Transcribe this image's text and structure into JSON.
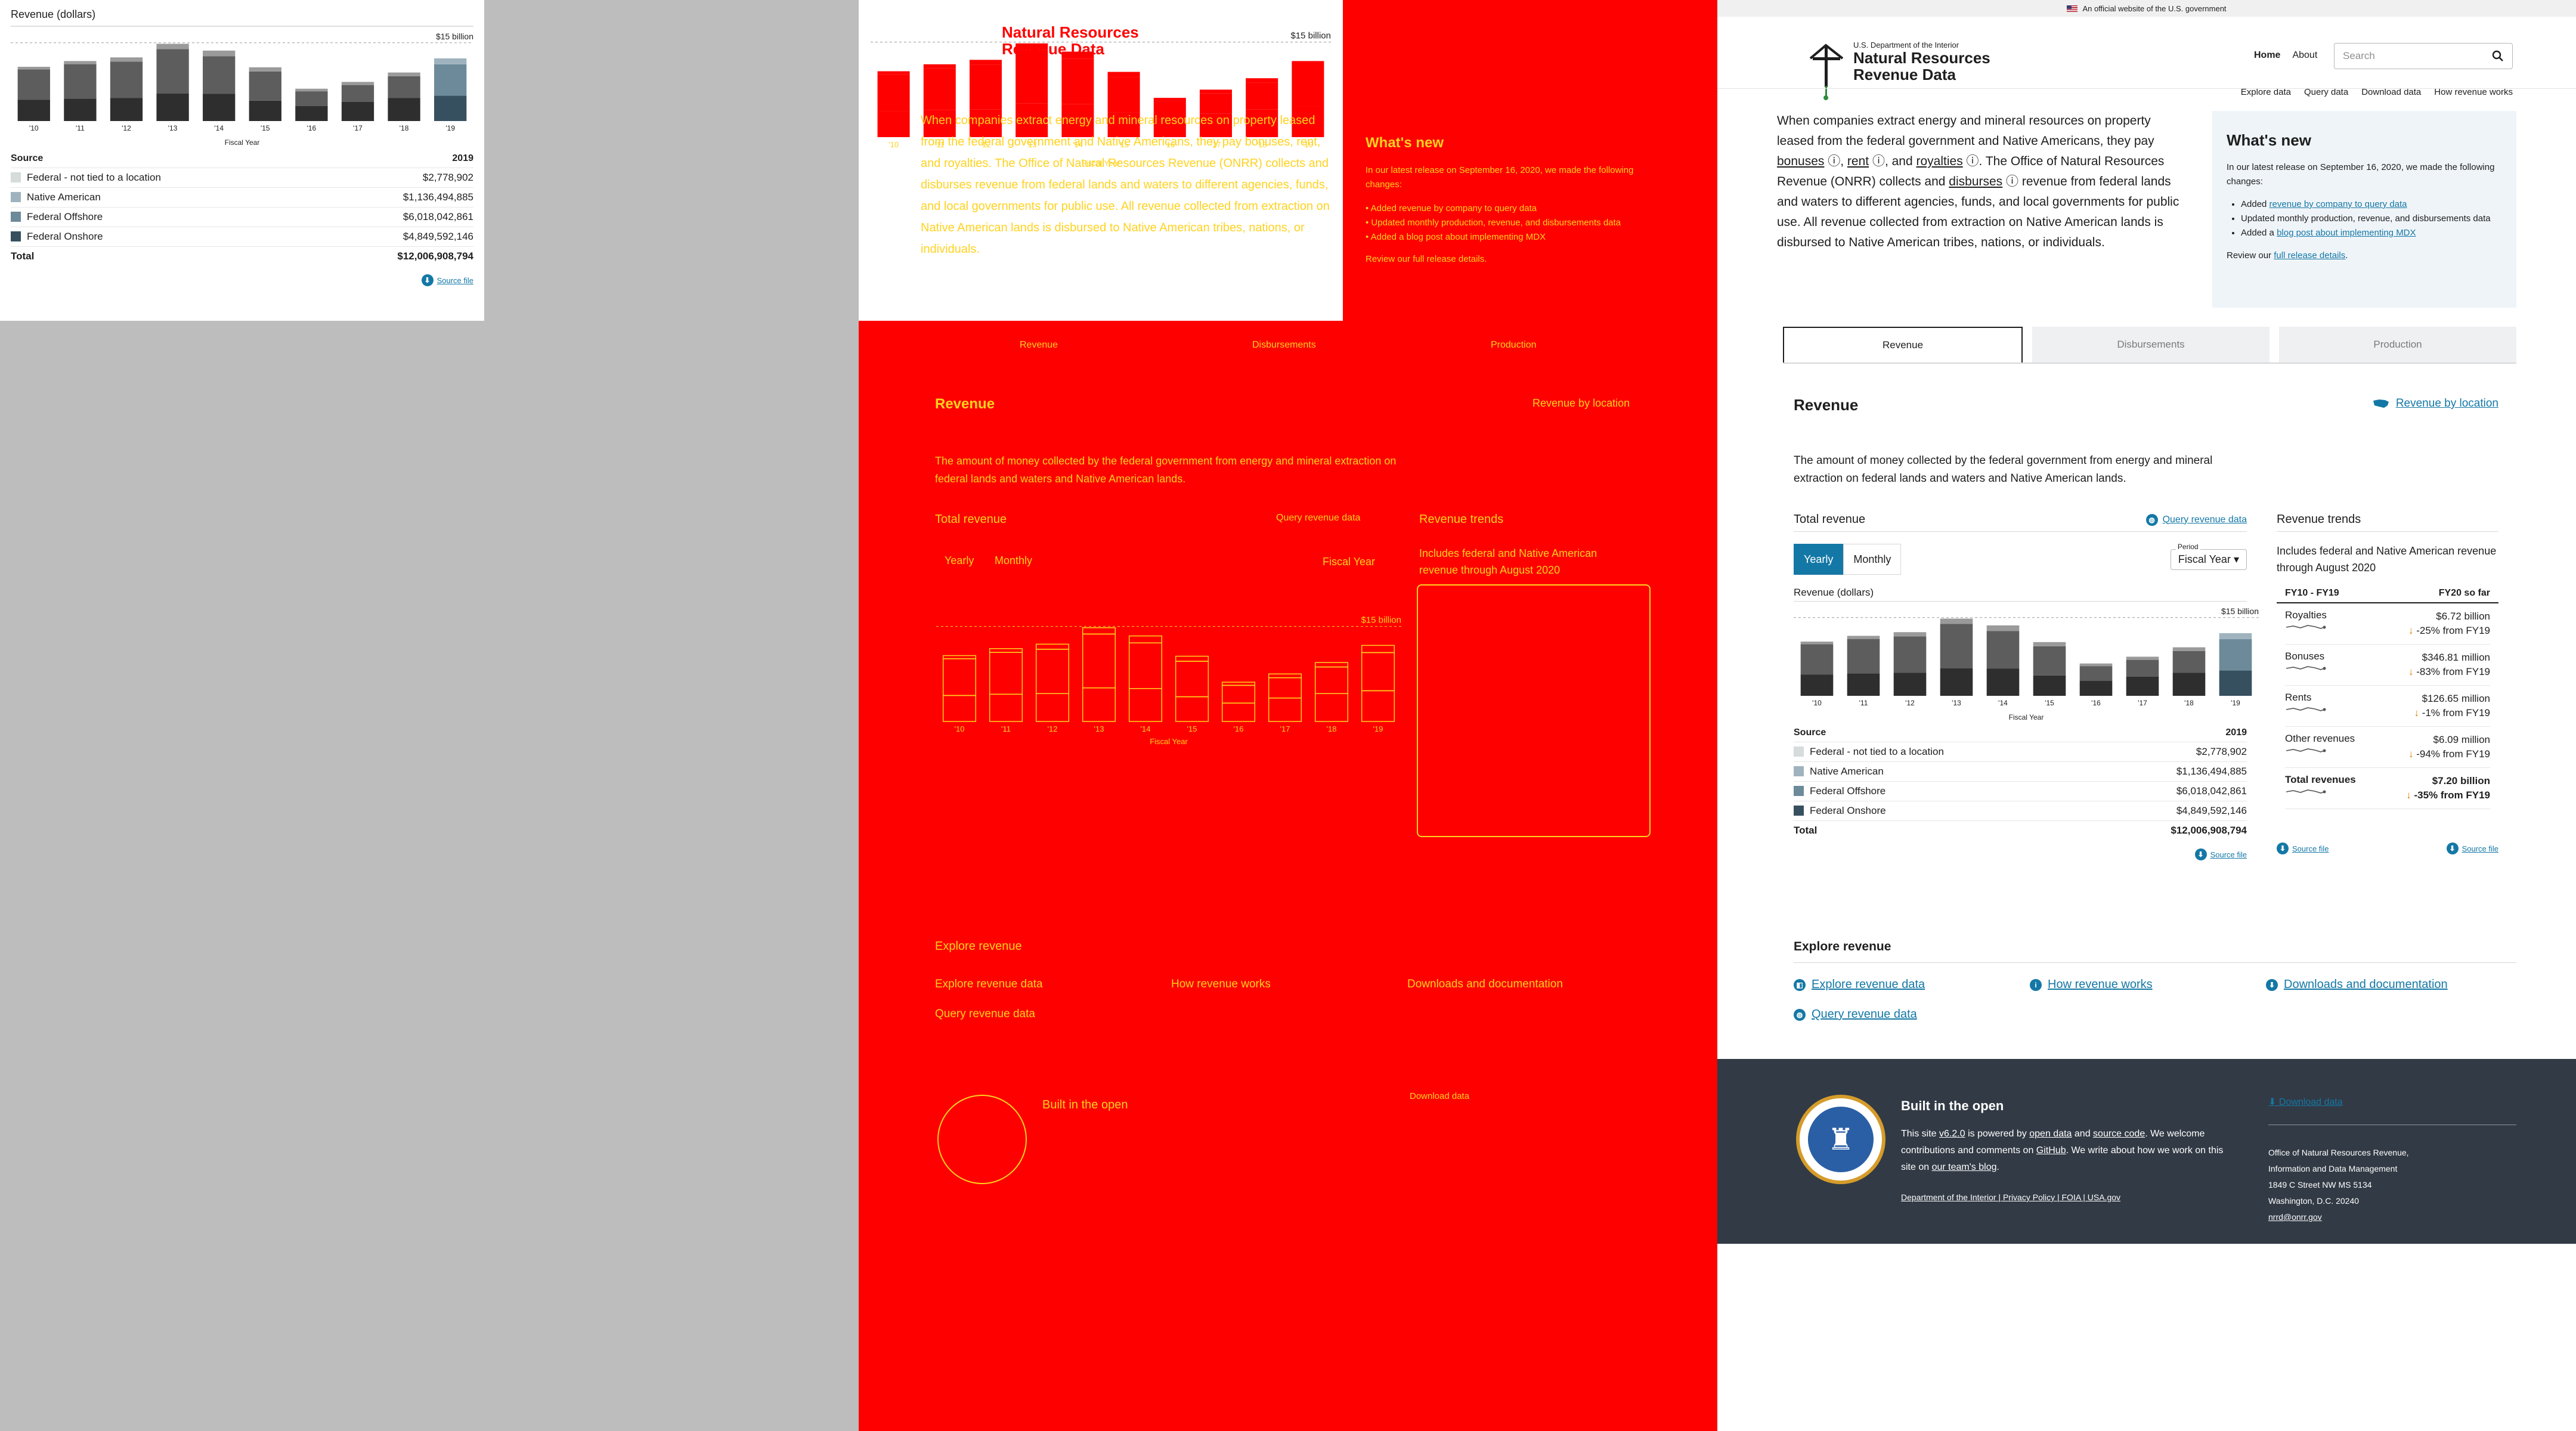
{
  "chart_data": {
    "type": "bar",
    "title": "Revenue (dollars)",
    "xlabel": "Fiscal Year",
    "ylabel": "",
    "max_label": "$15 billion",
    "categories": [
      "'10",
      "'11",
      "'12",
      "'13",
      "'14",
      "'15",
      "'16",
      "'17",
      "'18",
      "'19"
    ],
    "series": [
      {
        "name": "Federal Onshore",
        "values": [
          4.1,
          4.3,
          4.4,
          5.3,
          5.2,
          3.9,
          2.9,
          3.7,
          4.4,
          4.85
        ]
      },
      {
        "name": "Federal Offshore",
        "values": [
          5.8,
          6.6,
          7.0,
          8.5,
          7.2,
          5.6,
          2.8,
          3.2,
          4.2,
          6.02
        ]
      },
      {
        "name": "Native American",
        "values": [
          0.5,
          0.6,
          0.8,
          1.0,
          1.1,
          0.8,
          0.5,
          0.6,
          0.7,
          1.14
        ]
      }
    ],
    "ylim": [
      0,
      16
    ],
    "highlight_index": 9
  },
  "chart_colors": {
    "onshore": "#2e2e2e",
    "offshore": "#5d5d5d",
    "native": "#9a9a9a",
    "onshore_hl": "#37505f",
    "offshore_hl": "#6c8a9a",
    "native_hl": "#9fb3be",
    "fed_not_tied": "#d6dbdc"
  },
  "source_table": {
    "head": {
      "label": "Source",
      "year": "2019"
    },
    "rows": [
      {
        "label": "Federal - not tied to a location",
        "value": "$2,778,902",
        "color": "#d6dbdc"
      },
      {
        "label": "Native American",
        "value": "$1,136,494,885",
        "color": "#9fb3be"
      },
      {
        "label": "Federal Offshore",
        "value": "$6,018,042,861",
        "color": "#6c8a9a"
      },
      {
        "label": "Federal Onshore",
        "value": "$4,849,592,146",
        "color": "#37505f"
      }
    ],
    "total": {
      "label": "Total",
      "value": "$12,006,908,794"
    }
  },
  "source_file": "Source file",
  "banner": "An official website of the U.S. government",
  "logo": {
    "dept": "U.S. Department of the Interior",
    "name1": "Natural Resources",
    "name2": "Revenue Data"
  },
  "nav": {
    "home": "Home",
    "about": "About",
    "search_placeholder": "Search",
    "sub": [
      "Explore data",
      "Query data",
      "Download data",
      "How revenue works"
    ]
  },
  "intro": {
    "p1": "When companies extract energy and mineral resources on property leased from the federal government and Native Americans, they pay",
    "bonuses": "bonuses",
    "rent": "rent",
    "royalties": "royalties",
    "p2": "The Office of Natural Resources Revenue (ONRR) collects and",
    "disburses": "disburses",
    "p3": "revenue from federal lands and waters to different agencies, funds, and local governments for public use. All revenue collected from extraction on Native American lands is disbursed to Native American tribes, nations, or individuals."
  },
  "whats_new": {
    "title": "What's new",
    "lead": "In our latest release on September 16, 2020, we made the following changes:",
    "i1a": "Added",
    "i1link": "revenue by company to query data",
    "i2": "Updated monthly production, revenue, and disbursements data",
    "i3a": "Added a",
    "i3link": "blog post about implementing MDX",
    "review_a": "Review our",
    "review_link": "full release details",
    "review_b": "."
  },
  "tabs": [
    "Revenue",
    "Disbursements",
    "Production"
  ],
  "revenue": {
    "title": "Revenue",
    "by_location": "Revenue by location",
    "desc": "The amount of money collected by the federal government from energy and mineral extraction on federal lands and waters and Native American lands.",
    "total_title": "Total revenue",
    "query_link": "Query revenue data",
    "toggle": [
      "Yearly",
      "Monthly"
    ],
    "period_label": "Period",
    "period_value": "Fiscal Year"
  },
  "trends": {
    "title": "Revenue trends",
    "desc": "Includes federal and Native American revenue through August 2020",
    "col1": "FY10 - FY19",
    "col2": "FY20 so far",
    "rows": [
      {
        "name": "Royalties",
        "value": "$6.72 billion",
        "change": "-25% from FY19"
      },
      {
        "name": "Bonuses",
        "value": "$346.81 million",
        "change": "-83% from FY19"
      },
      {
        "name": "Rents",
        "value": "$126.65 million",
        "change": "-1% from FY19"
      },
      {
        "name": "Other revenues",
        "value": "$6.09 million",
        "change": "-94% from FY19"
      },
      {
        "name": "Total revenues",
        "value": "$7.20 billion",
        "change": "-35% from FY19"
      }
    ]
  },
  "explore": {
    "title": "Explore revenue",
    "links": [
      "Explore revenue data",
      "How revenue works",
      "Downloads and documentation",
      "Query revenue data"
    ]
  },
  "footer": {
    "title": "Built in the open",
    "text_a": "This site",
    "version": "v6.2.0",
    "text_b": "is powered by",
    "open_data": "open data",
    "text_c": "and",
    "source_code": "source code",
    "text_d": ". We welcome contributions and comments on",
    "github": "GitHub",
    "text_e": ". We write about how we work on this site on",
    "blog": "our team's blog",
    "text_f": ".",
    "links": "Department of the Interior | Privacy Policy | FOIA | USA.gov",
    "download": "Download data",
    "addr": [
      "Office of Natural Resources Revenue,",
      "Information and Data Management",
      "1849 C Street NW MS 5134",
      "Washington, D.C. 20240"
    ],
    "email": "nrrd@onrr.gov"
  }
}
